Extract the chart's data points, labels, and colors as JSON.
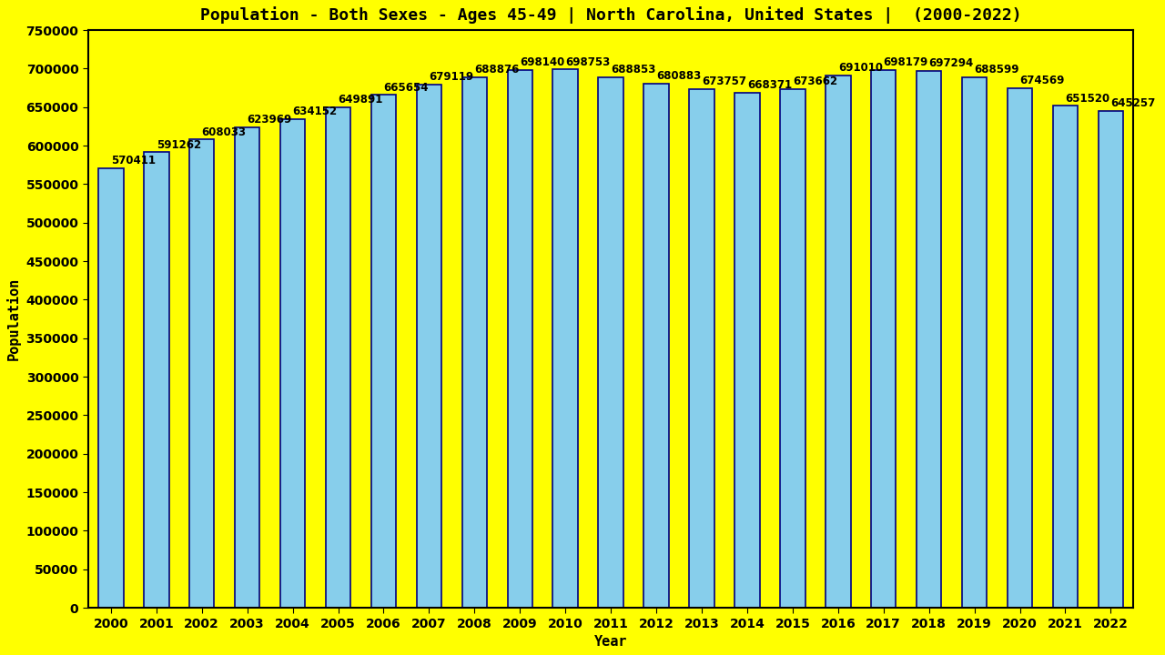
{
  "title": "Population - Both Sexes - Ages 45-49 | North Carolina, United States |  (2000-2022)",
  "xlabel": "Year",
  "ylabel": "Population",
  "years": [
    2000,
    2001,
    2002,
    2003,
    2004,
    2005,
    2006,
    2007,
    2008,
    2009,
    2010,
    2011,
    2012,
    2013,
    2014,
    2015,
    2016,
    2017,
    2018,
    2019,
    2020,
    2021,
    2022
  ],
  "values": [
    570411,
    591262,
    608033,
    623969,
    634152,
    649891,
    665654,
    679119,
    688876,
    698140,
    698753,
    688853,
    680883,
    673757,
    668371,
    673662,
    691010,
    698179,
    697294,
    688599,
    674569,
    651520,
    645257
  ],
  "bar_color": "#87CEEB",
  "bar_edge_color": "#000080",
  "background_color": "#FFFF00",
  "title_color": "#000000",
  "label_color": "#000000",
  "tick_color": "#000000",
  "ylim": [
    0,
    750000
  ],
  "yticks": [
    0,
    50000,
    100000,
    150000,
    200000,
    250000,
    300000,
    350000,
    400000,
    450000,
    500000,
    550000,
    600000,
    650000,
    700000,
    750000
  ],
  "title_fontsize": 13,
  "axis_label_fontsize": 11,
  "value_label_fontsize": 8.5,
  "tick_fontsize": 10,
  "bar_width": 0.55
}
